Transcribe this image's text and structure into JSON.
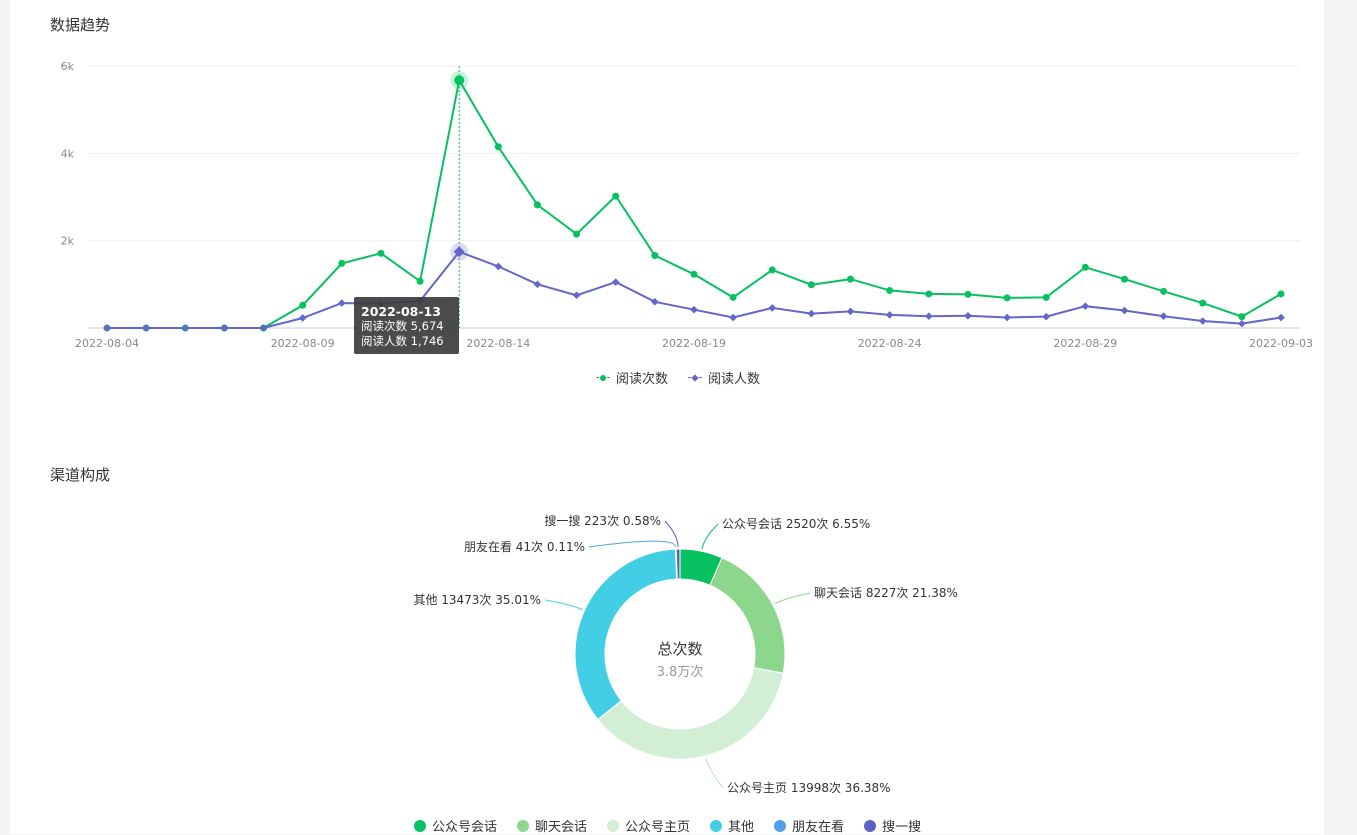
{
  "sections": {
    "trend_title": "数据趋势",
    "channel_title": "渠道构成"
  },
  "tooltip": {
    "date": "2022-08-13",
    "line1": "阅读次数 5,674",
    "line2": "阅读人数 1,746"
  },
  "donut_center": {
    "title": "总次数",
    "value": "3.8万次"
  },
  "chart_data": [
    {
      "type": "line",
      "title": "数据趋势",
      "x": [
        "2022-08-04",
        "2022-08-05",
        "2022-08-06",
        "2022-08-07",
        "2022-08-08",
        "2022-08-09",
        "2022-08-10",
        "2022-08-11",
        "2022-08-12",
        "2022-08-13",
        "2022-08-14",
        "2022-08-15",
        "2022-08-16",
        "2022-08-17",
        "2022-08-18",
        "2022-08-19",
        "2022-08-20",
        "2022-08-21",
        "2022-08-22",
        "2022-08-23",
        "2022-08-24",
        "2022-08-25",
        "2022-08-26",
        "2022-08-27",
        "2022-08-28",
        "2022-08-29",
        "2022-08-30",
        "2022-08-31",
        "2022-09-01",
        "2022-09-02",
        "2022-09-03"
      ],
      "x_tick_labels": [
        "2022-08-04",
        "2022-08-09",
        "2022-08-14",
        "2022-08-19",
        "2022-08-24",
        "2022-08-29",
        "2022-09-03"
      ],
      "y_tick_labels": [
        "2k",
        "4k",
        "6k"
      ],
      "ylim": [
        0,
        6000
      ],
      "grid": true,
      "legend_position": "bottom",
      "series": [
        {
          "name": "阅读次数",
          "color": "#07c160",
          "marker": "circle",
          "values": [
            0,
            0,
            0,
            0,
            0,
            520,
            1480,
            1710,
            1070,
            5674,
            4150,
            2820,
            2150,
            3020,
            1660,
            1230,
            700,
            1330,
            990,
            1120,
            860,
            780,
            770,
            690,
            700,
            1390,
            1120,
            840,
            570,
            260,
            780
          ]
        },
        {
          "name": "阅读人数",
          "color": "#6367c8",
          "marker": "diamond",
          "values": [
            0,
            0,
            0,
            0,
            0,
            230,
            570,
            560,
            620,
            1746,
            1410,
            1000,
            750,
            1050,
            600,
            420,
            240,
            460,
            330,
            380,
            300,
            270,
            280,
            240,
            260,
            500,
            400,
            270,
            160,
            100,
            240
          ]
        }
      ],
      "highlight_index": 9
    },
    {
      "type": "pie",
      "title": "渠道构成",
      "donut": true,
      "legend_position": "bottom",
      "slices": [
        {
          "name": "公众号会话",
          "count": 2520,
          "percent": 6.55,
          "color": "#07c160",
          "label": "公众号会话 2520次 6.55%"
        },
        {
          "name": "聊天会话",
          "count": 8227,
          "percent": 21.38,
          "color": "#8cd78b",
          "label": "聊天会话 8227次 21.38%"
        },
        {
          "name": "公众号主页",
          "count": 13998,
          "percent": 36.38,
          "color": "#d2efd5",
          "label": "公众号主页 13998次 36.38%"
        },
        {
          "name": "其他",
          "count": 13473,
          "percent": 35.01,
          "color": "#42cfe5",
          "label": "其他 13473次 35.01%"
        },
        {
          "name": "朋友在看",
          "count": 41,
          "percent": 0.11,
          "color": "#4fa0e6",
          "label": "朋友在看 41次 0.11%"
        },
        {
          "name": "搜一搜",
          "count": 223,
          "percent": 0.58,
          "color": "#5a63c4",
          "label": "搜一搜 223次 0.58%"
        }
      ]
    }
  ]
}
